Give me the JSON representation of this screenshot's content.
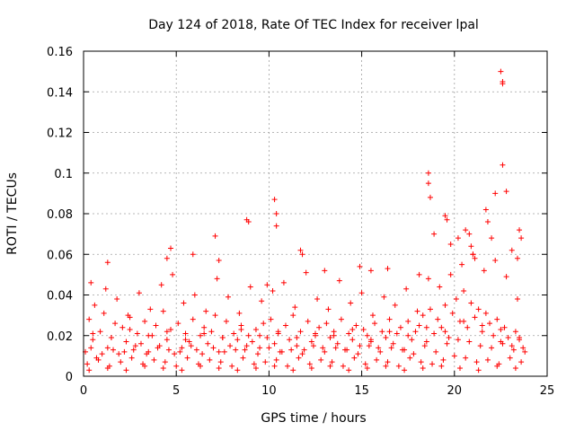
{
  "chart_data": {
    "type": "scatter",
    "title": "Day 124 of 2018, Rate Of TEC Index for receiver lpal",
    "xlabel": "GPS time / hours",
    "ylabel": "ROTI / TECUs",
    "xlim": [
      0,
      25
    ],
    "ylim": [
      0,
      0.16
    ],
    "xticks": [
      0,
      5,
      10,
      15,
      20,
      25
    ],
    "xtick_labels": [
      "0",
      "5",
      "10",
      "15",
      "20",
      "25"
    ],
    "yticks": [
      0,
      0.02,
      0.04,
      0.06,
      0.08,
      0.1,
      0.12,
      0.14,
      0.16
    ],
    "ytick_labels": [
      "0",
      "0.02",
      "0.04",
      "0.06",
      "0.08",
      "0.1",
      "0.12",
      "0.14",
      "0.16"
    ],
    "grid": true,
    "marker": "+",
    "color": "#ff0000",
    "series": [
      {
        "x": [
          0.1,
          0.3,
          0.5,
          0.7,
          0.9,
          1.1,
          1.3,
          1.5,
          1.7,
          1.9,
          2.1,
          2.3,
          2.5,
          2.7,
          2.9,
          3.1,
          3.3,
          3.5,
          3.7,
          3.9,
          4.1,
          4.3,
          4.5,
          4.7,
          4.9,
          5.1,
          5.3,
          5.5,
          5.7,
          5.9,
          6.1,
          6.3,
          6.5,
          6.7,
          6.9,
          7.1,
          7.3,
          7.5,
          7.7,
          7.9,
          8.1,
          8.3,
          8.5,
          8.7,
          8.9,
          9.1,
          9.3,
          9.5,
          9.7,
          9.9,
          10.1,
          10.3,
          10.5,
          10.7,
          10.9,
          11.1,
          11.3,
          11.5,
          11.7,
          11.9,
          12.1,
          12.3,
          12.5,
          12.7,
          12.9,
          13.1,
          13.3,
          13.5,
          13.7,
          13.9,
          14.1,
          14.3,
          14.5,
          14.7,
          14.9,
          15.1,
          15.3,
          15.5,
          15.7,
          15.9,
          16.1,
          16.3,
          16.5,
          16.7,
          16.9,
          17.1,
          17.3,
          17.5,
          17.7,
          17.9,
          18.1,
          18.3,
          18.5,
          18.7,
          18.9,
          19.1,
          19.3,
          19.5,
          19.7,
          19.9,
          20.1,
          20.3,
          20.5,
          20.7,
          20.9,
          21.1,
          21.3,
          21.5,
          21.7,
          21.9,
          22.1,
          22.3,
          22.5,
          22.7,
          22.9,
          23.1,
          23.3,
          23.5,
          23.7,
          0.2,
          0.8,
          1.4,
          2.0,
          2.6,
          3.2,
          3.8,
          4.4,
          5.0,
          5.6,
          6.2,
          6.8,
          7.4,
          8.0,
          8.6,
          9.2,
          9.8,
          10.4,
          11.0,
          11.6,
          12.2,
          12.8,
          13.4,
          14.0,
          14.6,
          15.2,
          15.8,
          16.4,
          17.0,
          17.6,
          18.2,
          18.8,
          19.4,
          20.0,
          20.6,
          21.2,
          21.8,
          22.4,
          23.0,
          23.6,
          0.4,
          1.0,
          1.6,
          2.2,
          2.8,
          3.4,
          4.0,
          4.6,
          5.2,
          5.8,
          6.4,
          7.0,
          7.6,
          8.2,
          8.8,
          9.4,
          10.0,
          10.6,
          11.2,
          11.8,
          12.4,
          13.0,
          13.6,
          14.2,
          14.8,
          15.4,
          16.0,
          16.6,
          17.2,
          17.8,
          18.4,
          19.0,
          19.6,
          20.2,
          20.8,
          21.4,
          22.0,
          22.6,
          23.2,
          23.8,
          0.6,
          1.2,
          1.8,
          2.4,
          3.0,
          3.6,
          4.2,
          4.8,
          5.4,
          6.0,
          6.6,
          7.2,
          7.8,
          8.4,
          9.0,
          9.6,
          10.2,
          10.8,
          11.4,
          12.0,
          12.6,
          13.2,
          13.8,
          14.4,
          15.0,
          15.6,
          16.2,
          16.8,
          17.4,
          18.0,
          18.6,
          19.2,
          19.8,
          20.4,
          21.0,
          21.6,
          22.2,
          22.8,
          23.4,
          0.3,
          1.3,
          2.3,
          3.3,
          4.3,
          5.3,
          6.3,
          7.3,
          8.3,
          9.3,
          10.3,
          11.3,
          12.3,
          13.3,
          14.3,
          15.3,
          16.3,
          17.3,
          18.3,
          19.3,
          20.3,
          21.3,
          22.3,
          23.3,
          0.5,
          1.5,
          2.5,
          3.5,
          4.5,
          5.5,
          6.5,
          7.5,
          8.5,
          9.5,
          10.5,
          11.5,
          12.5,
          13.5,
          14.5,
          15.5,
          16.5,
          17.5,
          18.5,
          19.5,
          20.5,
          21.5,
          22.5,
          23.5,
          0.4,
          1.3,
          4.5,
          4.7,
          5.9,
          7.1,
          7.3,
          8.8,
          8.9,
          9.9,
          10.3,
          10.4,
          10.4,
          11.7,
          11.8,
          13.0,
          14.9,
          15.5,
          16.4,
          18.1,
          18.6,
          18.6,
          18.7,
          18.9,
          19.5,
          19.6,
          19.8,
          20.2,
          20.6,
          20.8,
          20.9,
          21.0,
          21.1,
          21.7,
          21.8,
          22.0,
          22.2,
          22.5,
          22.6,
          22.6,
          22.6,
          22.8,
          23.1,
          23.4,
          23.5,
          23.6
        ],
        "y": [
          0.012,
          0.028,
          0.018,
          0.009,
          0.022,
          0.031,
          0.014,
          0.019,
          0.026,
          0.011,
          0.024,
          0.017,
          0.029,
          0.013,
          0.021,
          0.016,
          0.027,
          0.012,
          0.02,
          0.025,
          0.015,
          0.032,
          0.018,
          0.023,
          0.011,
          0.026,
          0.014,
          0.021,
          0.017,
          0.028,
          0.013,
          0.02,
          0.024,
          0.016,
          0.022,
          0.03,
          0.012,
          0.019,
          0.027,
          0.015,
          0.021,
          0.018,
          0.025,
          0.013,
          0.02,
          0.017,
          0.023,
          0.014,
          0.026,
          0.019,
          0.028,
          0.016,
          0.021,
          0.012,
          0.025,
          0.018,
          0.03,
          0.015,
          0.022,
          0.013,
          0.027,
          0.017,
          0.02,
          0.024,
          0.014,
          0.026,
          0.019,
          0.022,
          0.016,
          0.028,
          0.013,
          0.021,
          0.018,
          0.025,
          0.015,
          0.023,
          0.02,
          0.017,
          0.026,
          0.014,
          0.022,
          0.019,
          0.028,
          0.016,
          0.021,
          0.024,
          0.013,
          0.027,
          0.018,
          0.022,
          0.025,
          0.03,
          0.017,
          0.033,
          0.021,
          0.028,
          0.024,
          0.035,
          0.019,
          0.031,
          0.038,
          0.027,
          0.042,
          0.024,
          0.036,
          0.029,
          0.033,
          0.022,
          0.031,
          0.026,
          0.02,
          0.028,
          0.017,
          0.024,
          0.019,
          0.015,
          0.022,
          0.018,
          0.014,
          0.006,
          0.008,
          0.005,
          0.007,
          0.009,
          0.006,
          0.008,
          0.007,
          0.005,
          0.009,
          0.006,
          0.008,
          0.007,
          0.005,
          0.009,
          0.006,
          0.007,
          0.008,
          0.005,
          0.009,
          0.006,
          0.008,
          0.007,
          0.005,
          0.009,
          0.006,
          0.008,
          0.007,
          0.005,
          0.009,
          0.007,
          0.006,
          0.008,
          0.01,
          0.009,
          0.007,
          0.008,
          0.006,
          0.009,
          0.007,
          0.014,
          0.011,
          0.013,
          0.012,
          0.015,
          0.011,
          0.014,
          0.013,
          0.012,
          0.015,
          0.011,
          0.014,
          0.012,
          0.013,
          0.015,
          0.011,
          0.014,
          0.012,
          0.013,
          0.011,
          0.015,
          0.012,
          0.014,
          0.013,
          0.011,
          0.015,
          0.012,
          0.014,
          0.013,
          0.011,
          0.015,
          0.012,
          0.016,
          0.018,
          0.017,
          0.015,
          0.014,
          0.016,
          0.013,
          0.012,
          0.035,
          0.043,
          0.038,
          0.03,
          0.041,
          0.033,
          0.045,
          0.05,
          0.036,
          0.04,
          0.032,
          0.048,
          0.039,
          0.031,
          0.044,
          0.037,
          0.042,
          0.046,
          0.034,
          0.051,
          0.038,
          0.033,
          0.047,
          0.036,
          0.041,
          0.03,
          0.039,
          0.035,
          0.043,
          0.032,
          0.048,
          0.044,
          0.05,
          0.055,
          0.06,
          0.052,
          0.057,
          0.049,
          0.038,
          0.003,
          0.004,
          0.003,
          0.005,
          0.004,
          0.003,
          0.005,
          0.004,
          0.003,
          0.004,
          0.005,
          0.003,
          0.004,
          0.005,
          0.003,
          0.004,
          0.005,
          0.003,
          0.004,
          0.005,
          0.004,
          0.003,
          0.005,
          0.004,
          0.021,
          0.019,
          0.023,
          0.02,
          0.022,
          0.018,
          0.021,
          0.019,
          0.023,
          0.02,
          0.022,
          0.019,
          0.021,
          0.02,
          0.023,
          0.018,
          0.022,
          0.02,
          0.024,
          0.022,
          0.027,
          0.025,
          0.023,
          0.019,
          0.046,
          0.056,
          0.058,
          0.063,
          0.06,
          0.069,
          0.057,
          0.077,
          0.076,
          0.045,
          0.087,
          0.08,
          0.074,
          0.062,
          0.06,
          0.052,
          0.054,
          0.052,
          0.053,
          0.05,
          0.1,
          0.095,
          0.088,
          0.07,
          0.079,
          0.077,
          0.065,
          0.068,
          0.072,
          0.07,
          0.064,
          0.06,
          0.058,
          0.082,
          0.076,
          0.068,
          0.09,
          0.15,
          0.145,
          0.144,
          0.104,
          0.091,
          0.062,
          0.058,
          0.072,
          0.068
        ]
      }
    ]
  }
}
